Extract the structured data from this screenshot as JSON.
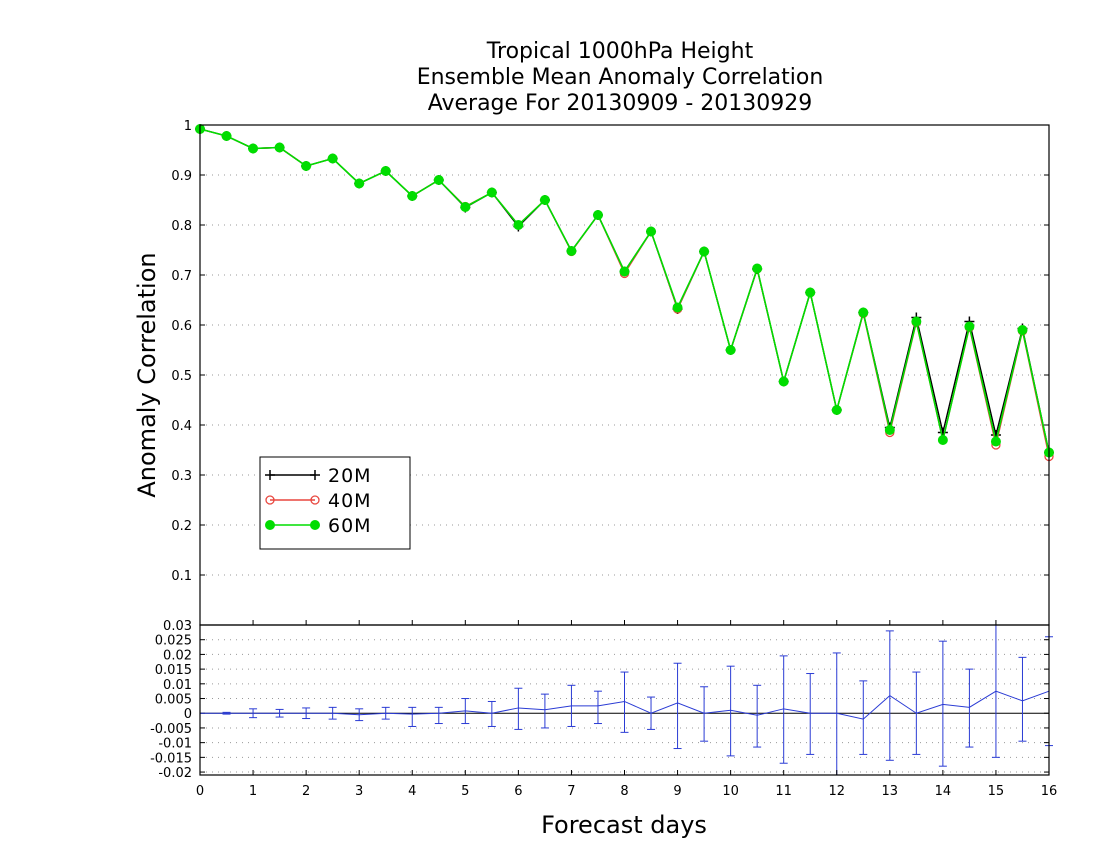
{
  "chart_data": {
    "type": "line",
    "title": [
      "Tropical 1000hPa Height",
      "Ensemble Mean Anomaly Correlation",
      "Average For 20130909 - 20130929"
    ],
    "xlabel": "Forecast days",
    "ylabel": "Anomaly Correlation",
    "xlim": [
      0,
      16
    ],
    "ylim": [
      0,
      1
    ],
    "xticks": [
      "0",
      "1",
      "2",
      "3",
      "4",
      "5",
      "6",
      "7",
      "8",
      "9",
      "10",
      "11",
      "12",
      "13",
      "14",
      "15",
      "16"
    ],
    "yticks": [
      "0.1",
      "0.2",
      "0.3",
      "0.4",
      "0.5",
      "0.6",
      "0.7",
      "0.8",
      "0.9",
      "1"
    ],
    "grid": true,
    "legend_position": "lower-left",
    "x": [
      0,
      0.5,
      1,
      1.5,
      2,
      2.5,
      3,
      3.5,
      4,
      4.5,
      5,
      5.5,
      6,
      6.5,
      7,
      7.5,
      8,
      8.5,
      9,
      9.5,
      10,
      10.5,
      11,
      11.5,
      12,
      12.5,
      13,
      13.5,
      14,
      14.5,
      15,
      15.5,
      16
    ],
    "series": [
      {
        "name": "20M",
        "color": "#000000",
        "marker": "plus",
        "values": [
          0.992,
          0.978,
          0.953,
          0.955,
          0.918,
          0.933,
          0.883,
          0.908,
          0.858,
          0.89,
          0.835,
          0.865,
          0.797,
          0.85,
          0.748,
          0.82,
          0.707,
          0.787,
          0.632,
          0.747,
          0.55,
          0.712,
          0.487,
          0.665,
          0.43,
          0.625,
          0.395,
          0.615,
          0.385,
          0.607,
          0.38,
          0.593,
          0.345
        ]
      },
      {
        "name": "40M",
        "color": "#e8473f",
        "marker": "open-circle",
        "values": [
          0.992,
          0.978,
          0.953,
          0.955,
          0.918,
          0.933,
          0.883,
          0.908,
          0.858,
          0.89,
          0.837,
          0.865,
          0.8,
          0.85,
          0.747,
          0.82,
          0.703,
          0.787,
          0.632,
          0.747,
          0.55,
          0.712,
          0.487,
          0.665,
          0.43,
          0.623,
          0.385,
          0.605,
          0.37,
          0.595,
          0.36,
          0.588,
          0.337
        ]
      },
      {
        "name": "60M",
        "color": "#00dd00",
        "marker": "filled-circle",
        "values": [
          0.992,
          0.978,
          0.953,
          0.955,
          0.918,
          0.933,
          0.883,
          0.908,
          0.858,
          0.89,
          0.836,
          0.865,
          0.8,
          0.85,
          0.748,
          0.82,
          0.707,
          0.787,
          0.635,
          0.747,
          0.55,
          0.713,
          0.487,
          0.665,
          0.43,
          0.625,
          0.39,
          0.607,
          0.37,
          0.597,
          0.367,
          0.59,
          0.345
        ]
      }
    ],
    "difference_panel": {
      "ylim": [
        -0.021,
        0.03
      ],
      "yticks": [
        "-0.02",
        "-0.015",
        "-0.01",
        "-0.005",
        "0",
        "0.005",
        "0.01",
        "0.015",
        "0.02",
        "0.025",
        "0.03"
      ],
      "color": "#2a3bd4",
      "mean": [
        0,
        0,
        0,
        0,
        0,
        0,
        -0.0005,
        0,
        -0.0003,
        0,
        0.0008,
        0,
        0.0018,
        0.0012,
        0.0025,
        0.0025,
        0.004,
        0,
        0.0035,
        0,
        0.001,
        -0.0007,
        0.0015,
        0,
        0,
        -0.002,
        0.006,
        0,
        0.003,
        0.002,
        0.0075,
        0.0042,
        0.0075
      ],
      "error_low": [
        0,
        -0.0003,
        -0.0015,
        -0.0013,
        -0.0018,
        -0.002,
        -0.0025,
        -0.002,
        -0.0045,
        -0.0035,
        -0.0035,
        -0.0045,
        -0.0055,
        -0.005,
        -0.0045,
        -0.0035,
        -0.0065,
        -0.0055,
        -0.012,
        -0.0095,
        -0.0145,
        -0.0115,
        -0.017,
        -0.014,
        -0.0215,
        -0.014,
        -0.016,
        -0.014,
        -0.018,
        -0.0115,
        -0.015,
        -0.0095,
        -0.011
      ],
      "error_high": [
        0,
        0.0003,
        0.0015,
        0.0013,
        0.0018,
        0.002,
        0.0015,
        0.002,
        0.002,
        0.002,
        0.005,
        0.004,
        0.0085,
        0.0065,
        0.0095,
        0.0075,
        0.014,
        0.0055,
        0.017,
        0.009,
        0.016,
        0.0095,
        0.0195,
        0.0135,
        0.0205,
        0.011,
        0.028,
        0.014,
        0.0245,
        0.015,
        0.03,
        0.019,
        0.026
      ]
    }
  }
}
